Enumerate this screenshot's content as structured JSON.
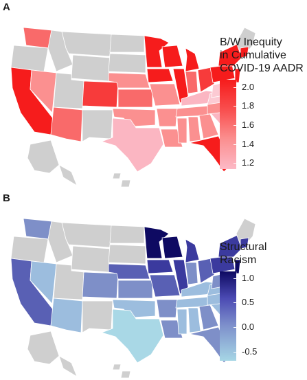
{
  "panels": [
    {
      "letter": "A",
      "legend": {
        "title_lines": [
          "B/W Inequity",
          "in Cumulative",
          "COVID-19 AADR"
        ],
        "ticks": [
          "2.0",
          "1.8",
          "1.6",
          "1.4",
          "1.2"
        ]
      },
      "colors": {
        "missing": "#cfcfcf",
        "high": "#f61c1c",
        "midhigh": "#f73b3b",
        "mid": "#f96a6a",
        "midlow": "#fb9090",
        "low": "#fbb6c2",
        "lowest": "#fccad3"
      }
    },
    {
      "letter": "B",
      "legend": {
        "title_lines": [
          "Structural",
          "Racism"
        ],
        "ticks": [
          "1.0",
          "0.5",
          "0.0",
          "-0.5"
        ]
      },
      "colors": {
        "missing": "#cfcfcf",
        "high": "#0e0a62",
        "midhigh": "#3b3a9e",
        "mid": "#5960b4",
        "midlow": "#7e8fc8",
        "low": "#9cbdde",
        "lowest": "#a9d8e6"
      }
    }
  ]
}
